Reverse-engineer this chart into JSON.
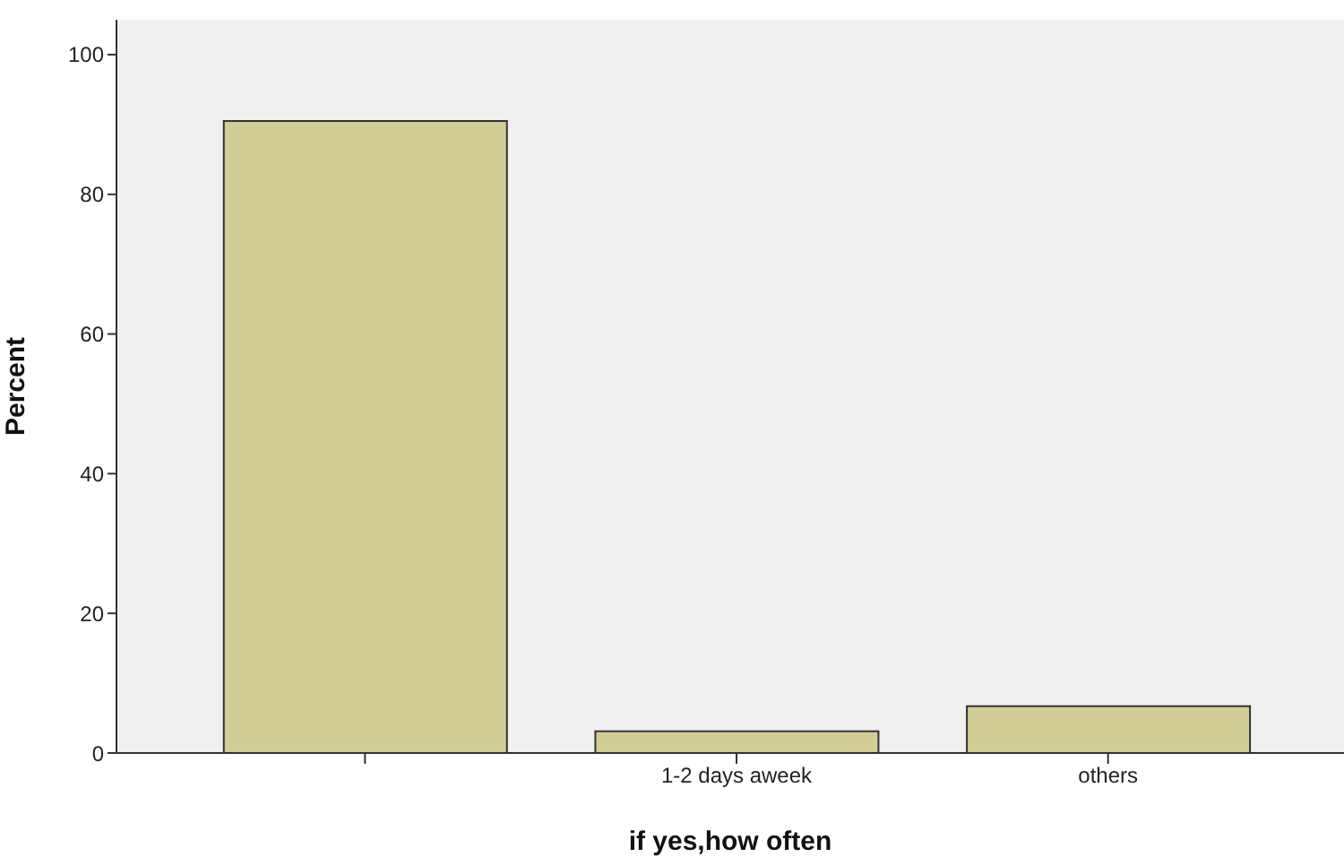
{
  "chart_data": {
    "type": "bar",
    "xlabel": "if yes,how often",
    "ylabel": "Percent",
    "categories": [
      null,
      "1-2 days aweek",
      "others"
    ],
    "values": [
      90.5,
      3.1,
      6.7
    ],
    "color": "#d3cd96",
    "ylim": [
      0,
      105
    ],
    "yticks": [
      0,
      20,
      40,
      60,
      80,
      100
    ],
    "grid": false
  }
}
